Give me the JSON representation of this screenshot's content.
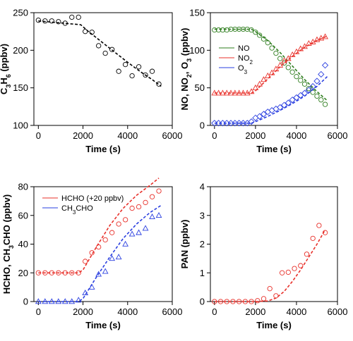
{
  "colors": {
    "black": "#000000",
    "green": "#2e7d1e",
    "red": "#e8302a",
    "blue": "#2a3fe0"
  },
  "chart_data": [
    {
      "type": "scatter",
      "xlabel": "Time (s)",
      "ylabel_parts": [
        [
          "C",
          false
        ],
        [
          "3",
          true
        ],
        [
          "H",
          false
        ],
        [
          "6",
          true
        ],
        [
          " (ppbv)",
          false
        ]
      ],
      "xlim": [
        -200,
        6000
      ],
      "ylim": [
        100,
        250
      ],
      "xticks": [
        0,
        2000,
        4000,
        6000
      ],
      "yticks": [
        100,
        150,
        200,
        250
      ],
      "series": [
        {
          "color": "black",
          "marker": "circle",
          "points": [
            [
              0,
              240
            ],
            [
              300,
              239
            ],
            [
              600,
              239
            ],
            [
              900,
              238
            ],
            [
              1200,
              236
            ],
            [
              1500,
              244
            ],
            [
              1800,
              244
            ],
            [
              2100,
              225
            ],
            [
              2400,
              224
            ],
            [
              2700,
              206
            ],
            [
              3000,
              196
            ],
            [
              3300,
              201
            ],
            [
              3600,
              172
            ],
            [
              3900,
              181
            ],
            [
              4200,
              166
            ],
            [
              4500,
              178
            ],
            [
              4800,
              167
            ],
            [
              5100,
              172
            ],
            [
              5400,
              155
            ]
          ],
          "model": [
            [
              0,
              239
            ],
            [
              1900,
              234
            ],
            [
              2200,
              226
            ],
            [
              2800,
              212
            ],
            [
              3400,
              198
            ],
            [
              4000,
              184
            ],
            [
              4600,
              171
            ],
            [
              5100,
              161
            ],
            [
              5500,
              152
            ]
          ]
        }
      ]
    },
    {
      "type": "scatter",
      "xlabel": "Time (s)",
      "ylabel_parts": [
        [
          "NO, NO",
          false
        ],
        [
          "2",
          true
        ],
        [
          ", O",
          false
        ],
        [
          "3",
          true
        ],
        [
          " (ppbv)",
          false
        ]
      ],
      "xlim": [
        -200,
        6000
      ],
      "ylim": [
        0,
        150
      ],
      "xticks": [
        0,
        2000,
        4000,
        6000
      ],
      "yticks": [
        0,
        50,
        100,
        150
      ],
      "legend_position": "upper-left",
      "series": [
        {
          "legend_parts": [
            [
              "NO",
              false
            ]
          ],
          "color": "green",
          "marker": "circle",
          "points": [
            [
              0,
              127
            ],
            [
              200,
              127
            ],
            [
              400,
              127
            ],
            [
              600,
              127
            ],
            [
              800,
              128
            ],
            [
              1000,
              128
            ],
            [
              1200,
              128
            ],
            [
              1400,
              128
            ],
            [
              1600,
              128
            ],
            [
              1800,
              127
            ],
            [
              2000,
              124
            ],
            [
              2200,
              120
            ],
            [
              2400,
              115
            ],
            [
              2600,
              110
            ],
            [
              2800,
              103
            ],
            [
              3000,
              96
            ],
            [
              3200,
              89
            ],
            [
              3400,
              83
            ],
            [
              3600,
              77
            ],
            [
              3800,
              71
            ],
            [
              4000,
              65
            ],
            [
              4200,
              60
            ],
            [
              4400,
              55
            ],
            [
              4600,
              49
            ],
            [
              4800,
              44
            ],
            [
              5000,
              39
            ],
            [
              5200,
              34
            ],
            [
              5400,
              28
            ]
          ],
          "model": [
            [
              0,
              128
            ],
            [
              1800,
              128
            ],
            [
              2000,
              125
            ],
            [
              2600,
              113
            ],
            [
              3200,
              97
            ],
            [
              3800,
              79
            ],
            [
              4400,
              61
            ],
            [
              5000,
              45
            ],
            [
              5500,
              33
            ]
          ]
        },
        {
          "legend_parts": [
            [
              "NO",
              false
            ],
            [
              "2",
              true
            ]
          ],
          "color": "red",
          "marker": "triangle",
          "points": [
            [
              0,
              43
            ],
            [
              200,
              43
            ],
            [
              400,
              43
            ],
            [
              600,
              43
            ],
            [
              800,
              43
            ],
            [
              1000,
              43
            ],
            [
              1200,
              43
            ],
            [
              1400,
              43
            ],
            [
              1600,
              43
            ],
            [
              1800,
              45
            ],
            [
              2000,
              50
            ],
            [
              2200,
              55
            ],
            [
              2400,
              61
            ],
            [
              2600,
              66
            ],
            [
              2800,
              70
            ],
            [
              3000,
              75
            ],
            [
              3200,
              80
            ],
            [
              3400,
              86
            ],
            [
              3600,
              89
            ],
            [
              3800,
              94
            ],
            [
              4000,
              98
            ],
            [
              4200,
              102
            ],
            [
              4400,
              105
            ],
            [
              4600,
              109
            ],
            [
              4800,
              111
            ],
            [
              5000,
              114
            ],
            [
              5200,
              116
            ],
            [
              5400,
              118
            ]
          ],
          "model": [
            [
              0,
              43
            ],
            [
              1800,
              43
            ],
            [
              2000,
              46
            ],
            [
              2600,
              62
            ],
            [
              3200,
              78
            ],
            [
              3800,
              92
            ],
            [
              4400,
              104
            ],
            [
              5000,
              113
            ],
            [
              5500,
              119
            ]
          ]
        },
        {
          "legend_parts": [
            [
              "O",
              false
            ],
            [
              "3",
              true
            ]
          ],
          "color": "blue",
          "marker": "diamond",
          "points": [
            [
              0,
              3
            ],
            [
              200,
              3
            ],
            [
              400,
              3
            ],
            [
              600,
              3
            ],
            [
              800,
              3
            ],
            [
              1000,
              3
            ],
            [
              1200,
              3
            ],
            [
              1400,
              3
            ],
            [
              1600,
              3
            ],
            [
              1800,
              5
            ],
            [
              2000,
              10
            ],
            [
              2200,
              12
            ],
            [
              2400,
              15
            ],
            [
              2600,
              18
            ],
            [
              2800,
              20
            ],
            [
              3000,
              22
            ],
            [
              3200,
              24
            ],
            [
              3400,
              27
            ],
            [
              3600,
              30
            ],
            [
              3800,
              34
            ],
            [
              4000,
              37
            ],
            [
              4200,
              40
            ],
            [
              4400,
              43
            ],
            [
              4600,
              47
            ],
            [
              4800,
              52
            ],
            [
              5000,
              59
            ],
            [
              5200,
              68
            ],
            [
              5400,
              80
            ]
          ],
          "model": [
            [
              0,
              3
            ],
            [
              1800,
              3
            ],
            [
              2000,
              5
            ],
            [
              2600,
              12
            ],
            [
              3200,
              20
            ],
            [
              3800,
              29
            ],
            [
              4400,
              39
            ],
            [
              5000,
              52
            ],
            [
              5500,
              65
            ]
          ]
        }
      ]
    },
    {
      "type": "scatter",
      "xlabel": "Time (s)",
      "ylabel_parts": [
        [
          "HCHO, CH",
          false
        ],
        [
          "3",
          true
        ],
        [
          "CHO (ppbv)",
          false
        ]
      ],
      "xlim": [
        -200,
        6000
      ],
      "ylim": [
        0,
        80
      ],
      "xticks": [
        0,
        2000,
        4000,
        6000
      ],
      "yticks": [
        0,
        20,
        40,
        60,
        80
      ],
      "legend_position": "upper-left",
      "series": [
        {
          "legend_parts": [
            [
              "HCHO (+20 ppbv)",
              false
            ]
          ],
          "color": "red",
          "marker": "circle",
          "points": [
            [
              0,
              20
            ],
            [
              300,
              20
            ],
            [
              600,
              20
            ],
            [
              900,
              20
            ],
            [
              1200,
              20
            ],
            [
              1500,
              20
            ],
            [
              1800,
              20
            ],
            [
              2100,
              28
            ],
            [
              2400,
              34
            ],
            [
              2700,
              38
            ],
            [
              3000,
              43
            ],
            [
              3300,
              48
            ],
            [
              3600,
              54
            ],
            [
              3900,
              57
            ],
            [
              4200,
              65
            ],
            [
              4500,
              66
            ],
            [
              4800,
              69
            ],
            [
              5100,
              73
            ],
            [
              5400,
              77
            ]
          ],
          "model": [
            [
              0,
              20
            ],
            [
              1800,
              20
            ],
            [
              2000,
              22
            ],
            [
              2600,
              38
            ],
            [
              3200,
              53
            ],
            [
              3800,
              65
            ],
            [
              4400,
              74
            ],
            [
              5000,
              81
            ],
            [
              5400,
              86
            ]
          ]
        },
        {
          "legend_parts": [
            [
              "CH",
              false
            ],
            [
              "3",
              true
            ],
            [
              "CHO",
              false
            ]
          ],
          "color": "blue",
          "marker": "triangle",
          "points": [
            [
              0,
              0
            ],
            [
              300,
              0
            ],
            [
              600,
              0
            ],
            [
              900,
              0
            ],
            [
              1200,
              0
            ],
            [
              1500,
              0
            ],
            [
              1800,
              1
            ],
            [
              2100,
              6
            ],
            [
              2400,
              10
            ],
            [
              2700,
              19
            ],
            [
              3000,
              21
            ],
            [
              3300,
              30
            ],
            [
              3600,
              31
            ],
            [
              3900,
              40
            ],
            [
              4200,
              47
            ],
            [
              4500,
              48
            ],
            [
              4800,
              51
            ],
            [
              5100,
              59
            ],
            [
              5400,
              60
            ]
          ],
          "model": [
            [
              0,
              0
            ],
            [
              1800,
              0
            ],
            [
              2000,
              2
            ],
            [
              2600,
              17
            ],
            [
              3200,
              31
            ],
            [
              3800,
              44
            ],
            [
              4400,
              54
            ],
            [
              5000,
              62
            ],
            [
              5500,
              67
            ]
          ]
        }
      ]
    },
    {
      "type": "scatter",
      "xlabel": "Time (s)",
      "ylabel_parts": [
        [
          "PAN (ppbv)",
          false
        ]
      ],
      "xlim": [
        -200,
        6000
      ],
      "ylim": [
        0,
        4
      ],
      "xticks": [
        0,
        2000,
        4000,
        6000
      ],
      "yticks": [
        0,
        1,
        2,
        3,
        4
      ],
      "series": [
        {
          "color": "red",
          "marker": "circle",
          "points": [
            [
              0,
              0
            ],
            [
              300,
              0
            ],
            [
              600,
              0
            ],
            [
              900,
              0
            ],
            [
              1200,
              0
            ],
            [
              1500,
              0
            ],
            [
              1800,
              0
            ],
            [
              2100,
              0.03
            ],
            [
              2400,
              0.1
            ],
            [
              2700,
              0.45
            ],
            [
              3000,
              0.2
            ],
            [
              3300,
              1.0
            ],
            [
              3600,
              1.02
            ],
            [
              3900,
              1.15
            ],
            [
              4200,
              1.25
            ],
            [
              4500,
              1.65
            ],
            [
              4800,
              2.2
            ],
            [
              5100,
              2.65
            ],
            [
              5400,
              2.4
            ]
          ],
          "model": [
            [
              0,
              0
            ],
            [
              2000,
              0
            ],
            [
              2600,
              0.02
            ],
            [
              3000,
              0.12
            ],
            [
              3400,
              0.35
            ],
            [
              3800,
              0.7
            ],
            [
              4200,
              1.1
            ],
            [
              4600,
              1.55
            ],
            [
              5000,
              2.0
            ],
            [
              5400,
              2.5
            ]
          ]
        }
      ]
    }
  ]
}
